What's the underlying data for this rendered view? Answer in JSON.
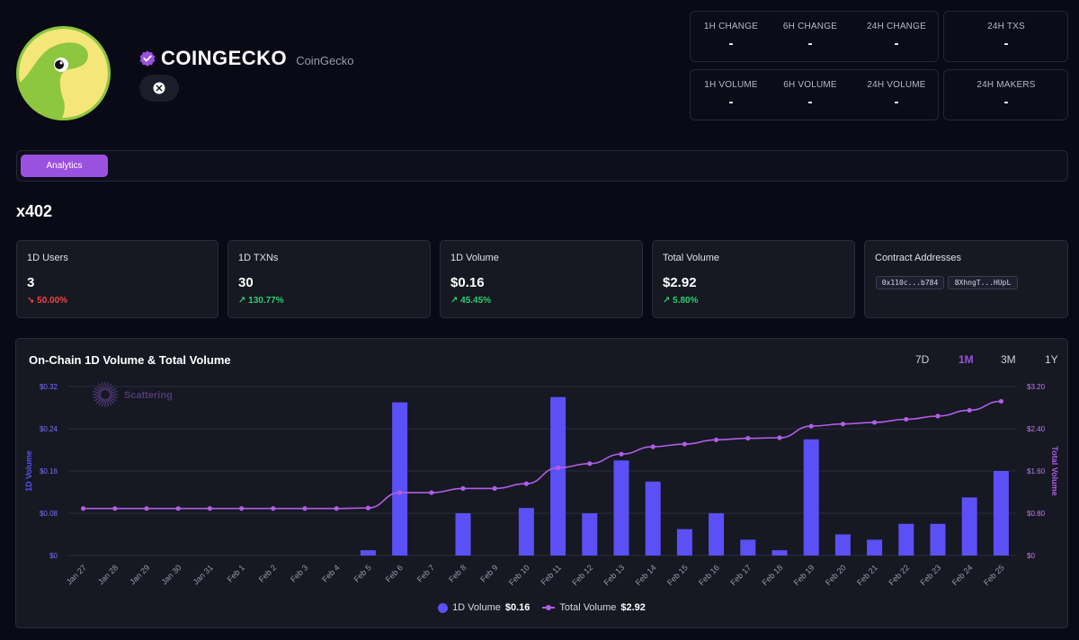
{
  "brand": {
    "name": "COINGECKO",
    "subtitle": "CoinGecko"
  },
  "social": {
    "icon": "x-icon"
  },
  "stats_top": {
    "h1_change_label": "1H CHANGE",
    "h1_change": "-",
    "h6_change_label": "6H CHANGE",
    "h6_change": "-",
    "h24_change_label": "24H CHANGE",
    "h24_change": "-",
    "txs_label": "24H TXS",
    "txs": "-"
  },
  "stats_bottom": {
    "h1_volume_label": "1H VOLUME",
    "h1_volume": "-",
    "h6_volume_label": "6H VOLUME",
    "h6_volume": "-",
    "h24_volume_label": "24H VOLUME",
    "h24_volume": "-",
    "makers_label": "24H MAKERS",
    "makers": "-"
  },
  "tabs": {
    "analytics": "Analytics"
  },
  "section_title": "x402",
  "cards": {
    "users": {
      "title": "1D Users",
      "value": "3",
      "change": "↘ 50.00%"
    },
    "txns": {
      "title": "1D TXNs",
      "value": "30",
      "change": "↗ 130.77%"
    },
    "volume": {
      "title": "1D Volume",
      "value": "$0.16",
      "change": "↗ 45.45%"
    },
    "total": {
      "title": "Total Volume",
      "value": "$2.92",
      "change": "↗ 5.80%"
    },
    "contracts": {
      "title": "Contract Addresses",
      "addr1": "0x110c...b784",
      "addr2": "8XhngT...HUpL"
    }
  },
  "chart_panel": {
    "title": "On-Chain 1D Volume & Total Volume",
    "ranges": [
      "7D",
      "1M",
      "3M",
      "1Y"
    ],
    "active_range": "1M",
    "watermark": "Scattering",
    "legend_volume_label": "1D Volume",
    "legend_volume_value": "$0.16",
    "legend_total_label": "Total Volume",
    "legend_total_value": "$2.92"
  },
  "colors": {
    "bar": "#5b50f5",
    "line": "#b05ee8",
    "accent": "#9b51e0",
    "up": "#2ecc71",
    "down": "#ef4444"
  },
  "chart_data": {
    "type": "bar+line",
    "title": "On-Chain 1D Volume & Total Volume",
    "categories": [
      "Jan 27",
      "Jan 28",
      "Jan 29",
      "Jan 30",
      "Jan 31",
      "Feb 1",
      "Feb 2",
      "Feb 3",
      "Feb 4",
      "Feb 5",
      "Feb 6",
      "Feb 7",
      "Feb 8",
      "Feb 9",
      "Feb 10",
      "Feb 11",
      "Feb 12",
      "Feb 13",
      "Feb 14",
      "Feb 15",
      "Feb 16",
      "Feb 17",
      "Feb 18",
      "Feb 19",
      "Feb 20",
      "Feb 21",
      "Feb 22",
      "Feb 23",
      "Feb 24",
      "Feb 25"
    ],
    "series": [
      {
        "name": "1D Volume",
        "type": "bar",
        "axis": "left",
        "values": [
          0,
          0,
          0,
          0,
          0,
          0,
          0,
          0,
          0,
          0.01,
          0.29,
          0,
          0.08,
          0,
          0.09,
          0.3,
          0.08,
          0.18,
          0.14,
          0.05,
          0.08,
          0.03,
          0.01,
          0.22,
          0.04,
          0.03,
          0.06,
          0.06,
          0.11,
          0.16
        ]
      },
      {
        "name": "Total Volume",
        "type": "line",
        "axis": "right",
        "values": [
          0.89,
          0.89,
          0.89,
          0.89,
          0.89,
          0.89,
          0.89,
          0.89,
          0.89,
          0.9,
          1.19,
          1.19,
          1.27,
          1.27,
          1.36,
          1.66,
          1.74,
          1.92,
          2.06,
          2.11,
          2.19,
          2.22,
          2.23,
          2.45,
          2.49,
          2.52,
          2.58,
          2.64,
          2.75,
          2.92
        ]
      }
    ],
    "ylabel_left": "1D Volume",
    "ylabel_right": "Total Volume",
    "ylim_left": [
      0,
      0.32
    ],
    "ylim_right": [
      0,
      3.2
    ],
    "yticks_left": [
      "$0",
      "$0.08",
      "$0.16",
      "$0.24",
      "$0.32"
    ],
    "yticks_right": [
      "$0",
      "$0.80",
      "$1.60",
      "$2.40",
      "$3.20"
    ]
  }
}
